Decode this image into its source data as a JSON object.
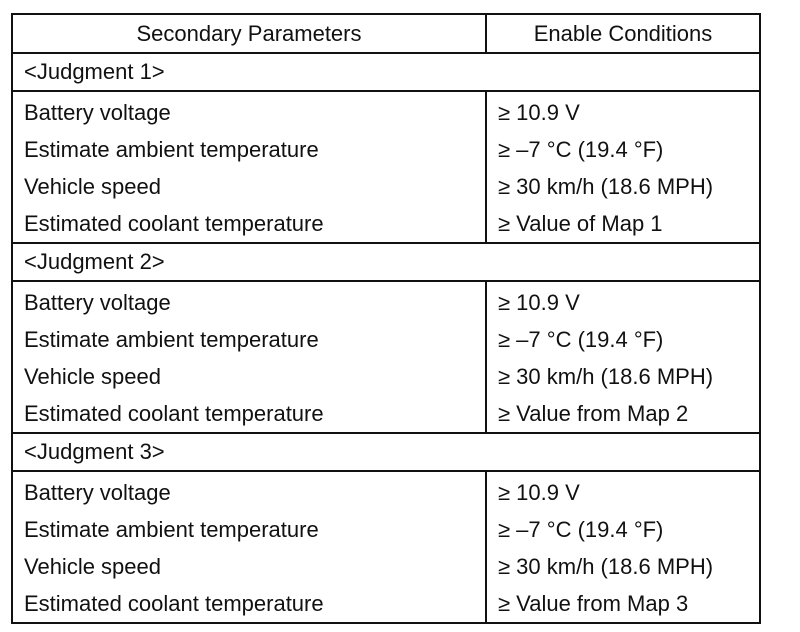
{
  "table": {
    "headers": {
      "param": "Secondary Parameters",
      "cond": "Enable Conditions"
    },
    "groups": [
      {
        "title": "<Judgment 1>",
        "rows": [
          {
            "param": "Battery voltage",
            "cond": "≥ 10.9 V"
          },
          {
            "param": "Estimate ambient temperature",
            "cond": "≥ –7 °C (19.4 °F)"
          },
          {
            "param": "Vehicle speed",
            "cond": "≥ 30 km/h (18.6 MPH)"
          },
          {
            "param": "Estimated coolant temperature",
            "cond": "≥ Value of Map 1"
          }
        ]
      },
      {
        "title": "<Judgment 2>",
        "rows": [
          {
            "param": "Battery voltage",
            "cond": "≥ 10.9 V"
          },
          {
            "param": "Estimate ambient temperature",
            "cond": "≥ –7 °C (19.4 °F)"
          },
          {
            "param": "Vehicle speed",
            "cond": "≥ 30 km/h (18.6 MPH)"
          },
          {
            "param": "Estimated coolant temperature",
            "cond": "≥ Value from Map 2"
          }
        ]
      },
      {
        "title": "<Judgment 3>",
        "rows": [
          {
            "param": "Battery voltage",
            "cond": "≥ 10.9 V"
          },
          {
            "param": "Estimate ambient temperature",
            "cond": "≥ –7 °C (19.4 °F)"
          },
          {
            "param": "Vehicle speed",
            "cond": "≥ 30 km/h (18.6 MPH)"
          },
          {
            "param": "Estimated coolant temperature",
            "cond": "≥ Value from Map 3"
          }
        ]
      }
    ]
  }
}
